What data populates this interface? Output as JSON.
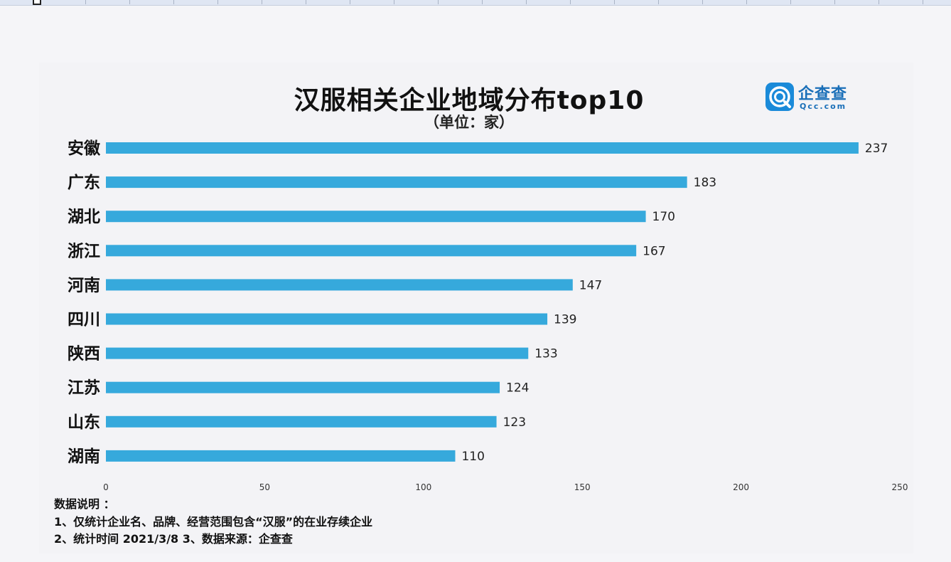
{
  "chart_data": {
    "type": "bar",
    "orientation": "horizontal",
    "title": "汉服相关企业地域分布top10",
    "subtitle": "（单位：家）",
    "categories": [
      "安徽",
      "广东",
      "湖北",
      "浙江",
      "河南",
      "四川",
      "陕西",
      "江苏",
      "山东",
      "湖南"
    ],
    "values": [
      237,
      183,
      170,
      167,
      147,
      139,
      133,
      124,
      123,
      110
    ],
    "xlim": [
      0,
      250
    ],
    "xticks": [
      "0",
      "50",
      "100",
      "150",
      "200",
      "250"
    ],
    "bar_color": "#36a9dc",
    "grid": false,
    "legend": "none"
  },
  "logo": {
    "name": "企查查",
    "domain": "Qcc.com"
  },
  "notes": {
    "heading": "数据说明 ：",
    "line1": "1、仅统计企业名、品牌、经营范围包含“汉服”的在业存续企业",
    "line2": "2、统计时间 2021/3/8   3、数据来源：企查查"
  }
}
